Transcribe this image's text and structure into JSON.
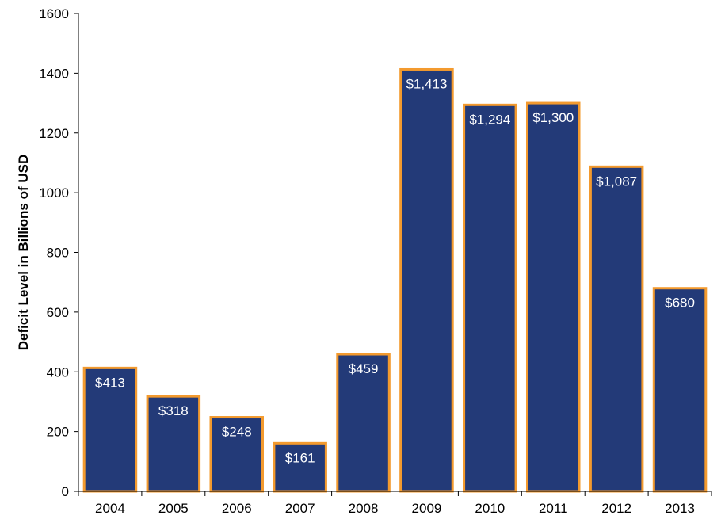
{
  "chart_data": {
    "type": "bar",
    "title": "",
    "xlabel": "",
    "ylabel": "Deficit Level in Billions of USD",
    "ylim": [
      0,
      1600
    ],
    "yticks": [
      0,
      200,
      400,
      600,
      800,
      1000,
      1200,
      1400,
      1600
    ],
    "categories": [
      "2004",
      "2005",
      "2006",
      "2007",
      "2008",
      "2009",
      "2010",
      "2011",
      "2012",
      "2013"
    ],
    "values": [
      413,
      318,
      248,
      161,
      459,
      1413,
      1294,
      1300,
      1087,
      680
    ],
    "value_labels": [
      "$413",
      "$318",
      "$248",
      "$161",
      "$459",
      "$1,413",
      "$1,294",
      "$1,300",
      "$1,087",
      "$680"
    ],
    "grid": false,
    "legend": "none",
    "colors": {
      "bar_fill": "#233a78",
      "bar_stroke": "#f39a2e",
      "axis": "#000000",
      "label_text": "#ffffff"
    }
  }
}
